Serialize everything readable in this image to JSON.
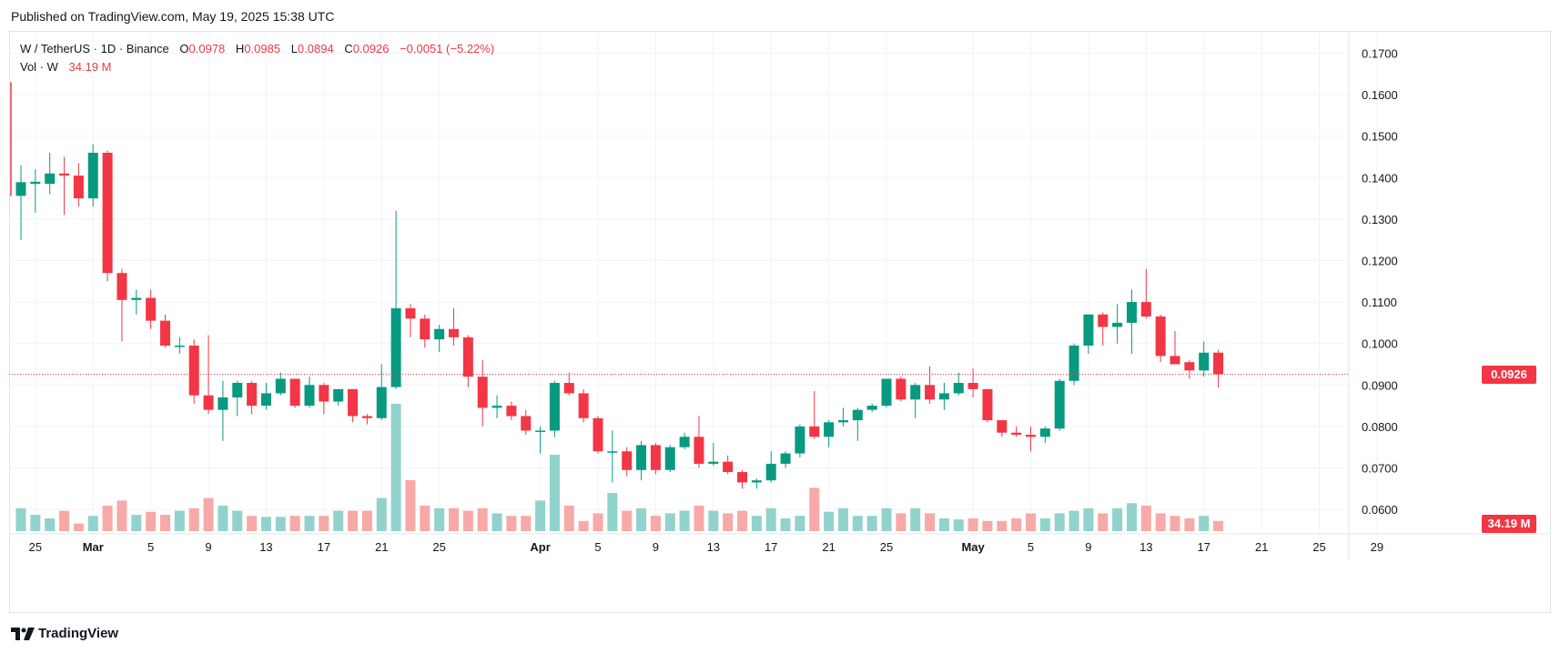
{
  "header": {
    "published": "Published on TradingView.com, May 19, 2025 15:38 UTC"
  },
  "legend": {
    "symbol": "W / TetherUS · 1D · Binance",
    "o_label": "O",
    "o_value": "0.0978",
    "h_label": "H",
    "h_value": "0.0985",
    "l_label": "L",
    "l_value": "0.0894",
    "c_label": "C",
    "c_value": "0.0926",
    "change": "−0.0051 (−5.22%)",
    "vol_label": "Vol · W",
    "vol_value": "34.19 M"
  },
  "price_axis": {
    "last_price_badge": "0.0926",
    "last_volume_badge": "34.19 M"
  },
  "footer": {
    "brand": "TradingView"
  },
  "colors": {
    "up": "#089981",
    "down": "#f23645",
    "up_volume": "#92d2cc",
    "down_volume": "#f7a9a7",
    "grid": "#f0f3fa"
  },
  "chart_data": {
    "type": "candlestick",
    "symbol": "W / TetherUS",
    "interval": "1D",
    "exchange": "Binance",
    "ylim": [
      0.058,
      0.176
    ],
    "y_ticks": [
      "0.1700",
      "0.1600",
      "0.1500",
      "0.1400",
      "0.1300",
      "0.1200",
      "0.1100",
      "0.1000",
      "0.0900",
      "0.0800",
      "0.0700",
      "0.0600"
    ],
    "x_ticks": [
      "25",
      "Mar",
      "5",
      "9",
      "13",
      "17",
      "21",
      "25",
      "Apr",
      "5",
      "9",
      "13",
      "17",
      "21",
      "25",
      "May",
      "5",
      "9",
      "13",
      "17",
      "21",
      "25",
      "29"
    ],
    "x_range": [
      "2025-02-24",
      "2025-05-29"
    ],
    "last_price": 0.0926,
    "last_volume": "34.19 M",
    "candles": [
      {
        "d": "2025-02-24",
        "o": 0.1356,
        "h": 0.143,
        "l": 0.125,
        "c": 0.1389,
        "v": 4.5
      },
      {
        "d": "2025-02-25",
        "o": 0.1385,
        "h": 0.142,
        "l": 0.1315,
        "c": 0.139,
        "v": 3.2
      },
      {
        "d": "2025-02-26",
        "o": 0.1385,
        "h": 0.146,
        "l": 0.136,
        "c": 0.141,
        "v": 2.5
      },
      {
        "d": "2025-02-27",
        "o": 0.141,
        "h": 0.145,
        "l": 0.131,
        "c": 0.1405,
        "v": 4.0
      },
      {
        "d": "2025-02-28",
        "o": 0.1405,
        "h": 0.1435,
        "l": 0.133,
        "c": 0.135,
        "v": 1.5
      },
      {
        "d": "2025-03-01",
        "o": 0.135,
        "h": 0.148,
        "l": 0.133,
        "c": 0.146,
        "v": 3.0
      },
      {
        "d": "2025-03-02",
        "o": 0.146,
        "h": 0.1465,
        "l": 0.115,
        "c": 0.117,
        "v": 5.0
      },
      {
        "d": "2025-03-03",
        "o": 0.117,
        "h": 0.118,
        "l": 0.1005,
        "c": 0.1105,
        "v": 6.0
      },
      {
        "d": "2025-03-04",
        "o": 0.1105,
        "h": 0.113,
        "l": 0.107,
        "c": 0.111,
        "v": 3.2
      },
      {
        "d": "2025-03-05",
        "o": 0.111,
        "h": 0.113,
        "l": 0.1035,
        "c": 0.1055,
        "v": 3.8
      },
      {
        "d": "2025-03-06",
        "o": 0.1055,
        "h": 0.107,
        "l": 0.099,
        "c": 0.0995,
        "v": 3.2
      },
      {
        "d": "2025-03-07",
        "o": 0.0995,
        "h": 0.1015,
        "l": 0.0975,
        "c": 0.0995,
        "v": 4.0
      },
      {
        "d": "2025-03-08",
        "o": 0.0995,
        "h": 0.101,
        "l": 0.0855,
        "c": 0.0875,
        "v": 4.5
      },
      {
        "d": "2025-03-09",
        "o": 0.0875,
        "h": 0.102,
        "l": 0.083,
        "c": 0.084,
        "v": 6.5
      },
      {
        "d": "2025-03-10",
        "o": 0.084,
        "h": 0.091,
        "l": 0.0765,
        "c": 0.087,
        "v": 5.0
      },
      {
        "d": "2025-03-11",
        "o": 0.087,
        "h": 0.091,
        "l": 0.0825,
        "c": 0.0905,
        "v": 4.0
      },
      {
        "d": "2025-03-12",
        "o": 0.0905,
        "h": 0.091,
        "l": 0.083,
        "c": 0.085,
        "v": 3.0
      },
      {
        "d": "2025-03-13",
        "o": 0.085,
        "h": 0.0905,
        "l": 0.084,
        "c": 0.088,
        "v": 2.8
      },
      {
        "d": "2025-03-14",
        "o": 0.088,
        "h": 0.093,
        "l": 0.0875,
        "c": 0.0915,
        "v": 2.8
      },
      {
        "d": "2025-03-15",
        "o": 0.0915,
        "h": 0.0915,
        "l": 0.0845,
        "c": 0.085,
        "v": 3.0
      },
      {
        "d": "2025-03-16",
        "o": 0.085,
        "h": 0.092,
        "l": 0.0845,
        "c": 0.09,
        "v": 3.0
      },
      {
        "d": "2025-03-17",
        "o": 0.09,
        "h": 0.0905,
        "l": 0.083,
        "c": 0.086,
        "v": 3.0
      },
      {
        "d": "2025-03-18",
        "o": 0.086,
        "h": 0.089,
        "l": 0.085,
        "c": 0.089,
        "v": 4.0
      },
      {
        "d": "2025-03-19",
        "o": 0.089,
        "h": 0.089,
        "l": 0.081,
        "c": 0.0825,
        "v": 4.0
      },
      {
        "d": "2025-03-20",
        "o": 0.0825,
        "h": 0.083,
        "l": 0.0805,
        "c": 0.082,
        "v": 4.0
      },
      {
        "d": "2025-03-21",
        "o": 0.082,
        "h": 0.095,
        "l": 0.0815,
        "c": 0.0895,
        "v": 6.5
      },
      {
        "d": "2025-03-22",
        "o": 0.0895,
        "h": 0.132,
        "l": 0.089,
        "c": 0.1085,
        "v": 25.0
      },
      {
        "d": "2025-03-23",
        "o": 0.1085,
        "h": 0.1095,
        "l": 0.1015,
        "c": 0.106,
        "v": 10.0
      },
      {
        "d": "2025-03-24",
        "o": 0.106,
        "h": 0.107,
        "l": 0.099,
        "c": 0.101,
        "v": 5.0
      },
      {
        "d": "2025-03-25",
        "o": 0.101,
        "h": 0.1045,
        "l": 0.098,
        "c": 0.1035,
        "v": 4.5
      },
      {
        "d": "2025-03-26",
        "o": 0.1035,
        "h": 0.1085,
        "l": 0.0995,
        "c": 0.1015,
        "v": 4.5
      },
      {
        "d": "2025-03-27",
        "o": 0.1015,
        "h": 0.102,
        "l": 0.0895,
        "c": 0.092,
        "v": 4.0
      },
      {
        "d": "2025-03-28",
        "o": 0.092,
        "h": 0.096,
        "l": 0.08,
        "c": 0.0845,
        "v": 4.5
      },
      {
        "d": "2025-03-29",
        "o": 0.0845,
        "h": 0.0875,
        "l": 0.082,
        "c": 0.085,
        "v": 3.5
      },
      {
        "d": "2025-03-30",
        "o": 0.085,
        "h": 0.086,
        "l": 0.0815,
        "c": 0.0825,
        "v": 3.0
      },
      {
        "d": "2025-03-31",
        "o": 0.0825,
        "h": 0.084,
        "l": 0.078,
        "c": 0.079,
        "v": 3.0
      },
      {
        "d": "2025-04-01",
        "o": 0.079,
        "h": 0.08,
        "l": 0.0735,
        "c": 0.079,
        "v": 6.0
      },
      {
        "d": "2025-04-02",
        "o": 0.079,
        "h": 0.091,
        "l": 0.0775,
        "c": 0.0905,
        "v": 15.0
      },
      {
        "d": "2025-04-03",
        "o": 0.0905,
        "h": 0.093,
        "l": 0.0875,
        "c": 0.088,
        "v": 5.0
      },
      {
        "d": "2025-04-04",
        "o": 0.088,
        "h": 0.089,
        "l": 0.081,
        "c": 0.082,
        "v": 2.0
      },
      {
        "d": "2025-04-05",
        "o": 0.082,
        "h": 0.0825,
        "l": 0.0735,
        "c": 0.074,
        "v": 3.5
      },
      {
        "d": "2025-04-06",
        "o": 0.074,
        "h": 0.079,
        "l": 0.0665,
        "c": 0.074,
        "v": 7.5
      },
      {
        "d": "2025-04-07",
        "o": 0.074,
        "h": 0.075,
        "l": 0.068,
        "c": 0.0695,
        "v": 4.0
      },
      {
        "d": "2025-04-08",
        "o": 0.0695,
        "h": 0.0765,
        "l": 0.067,
        "c": 0.0755,
        "v": 4.5
      },
      {
        "d": "2025-04-09",
        "o": 0.0755,
        "h": 0.076,
        "l": 0.0685,
        "c": 0.0695,
        "v": 3.0
      },
      {
        "d": "2025-04-10",
        "o": 0.0695,
        "h": 0.0755,
        "l": 0.069,
        "c": 0.075,
        "v": 3.5
      },
      {
        "d": "2025-04-11",
        "o": 0.075,
        "h": 0.0785,
        "l": 0.0745,
        "c": 0.0775,
        "v": 4.0
      },
      {
        "d": "2025-04-12",
        "o": 0.0775,
        "h": 0.0825,
        "l": 0.07,
        "c": 0.071,
        "v": 5.0
      },
      {
        "d": "2025-04-13",
        "o": 0.071,
        "h": 0.076,
        "l": 0.0705,
        "c": 0.0715,
        "v": 4.0
      },
      {
        "d": "2025-04-14",
        "o": 0.0715,
        "h": 0.073,
        "l": 0.0685,
        "c": 0.069,
        "v": 3.5
      },
      {
        "d": "2025-04-15",
        "o": 0.069,
        "h": 0.0695,
        "l": 0.065,
        "c": 0.0665,
        "v": 4.0
      },
      {
        "d": "2025-04-16",
        "o": 0.0665,
        "h": 0.0675,
        "l": 0.065,
        "c": 0.067,
        "v": 3.0
      },
      {
        "d": "2025-04-17",
        "o": 0.067,
        "h": 0.074,
        "l": 0.0665,
        "c": 0.071,
        "v": 4.5
      },
      {
        "d": "2025-04-18",
        "o": 0.071,
        "h": 0.074,
        "l": 0.07,
        "c": 0.0735,
        "v": 2.5
      },
      {
        "d": "2025-04-19",
        "o": 0.0735,
        "h": 0.0805,
        "l": 0.0725,
        "c": 0.08,
        "v": 3.0
      },
      {
        "d": "2025-04-20",
        "o": 0.08,
        "h": 0.0885,
        "l": 0.077,
        "c": 0.0775,
        "v": 8.5
      },
      {
        "d": "2025-04-21",
        "o": 0.0775,
        "h": 0.0815,
        "l": 0.075,
        "c": 0.081,
        "v": 3.8
      },
      {
        "d": "2025-04-22",
        "o": 0.081,
        "h": 0.0845,
        "l": 0.08,
        "c": 0.0815,
        "v": 4.5
      },
      {
        "d": "2025-04-23",
        "o": 0.0815,
        "h": 0.0845,
        "l": 0.0765,
        "c": 0.084,
        "v": 3.0
      },
      {
        "d": "2025-04-24",
        "o": 0.084,
        "h": 0.0855,
        "l": 0.0835,
        "c": 0.085,
        "v": 3.0
      },
      {
        "d": "2025-04-25",
        "o": 0.085,
        "h": 0.0915,
        "l": 0.0845,
        "c": 0.0915,
        "v": 4.5
      },
      {
        "d": "2025-04-26",
        "o": 0.0915,
        "h": 0.092,
        "l": 0.086,
        "c": 0.0865,
        "v": 3.5
      },
      {
        "d": "2025-04-27",
        "o": 0.0865,
        "h": 0.0905,
        "l": 0.082,
        "c": 0.09,
        "v": 4.5
      },
      {
        "d": "2025-04-28",
        "o": 0.09,
        "h": 0.0945,
        "l": 0.0855,
        "c": 0.0865,
        "v": 3.5
      },
      {
        "d": "2025-04-29",
        "o": 0.0865,
        "h": 0.0905,
        "l": 0.084,
        "c": 0.088,
        "v": 2.5
      },
      {
        "d": "2025-04-30",
        "o": 0.088,
        "h": 0.093,
        "l": 0.0875,
        "c": 0.0905,
        "v": 2.3
      },
      {
        "d": "2025-05-01",
        "o": 0.0905,
        "h": 0.094,
        "l": 0.087,
        "c": 0.089,
        "v": 2.5
      },
      {
        "d": "2025-05-02",
        "o": 0.089,
        "h": 0.089,
        "l": 0.081,
        "c": 0.0815,
        "v": 2.0
      },
      {
        "d": "2025-05-03",
        "o": 0.0815,
        "h": 0.0815,
        "l": 0.0775,
        "c": 0.0785,
        "v": 2.0
      },
      {
        "d": "2025-05-04",
        "o": 0.0785,
        "h": 0.08,
        "l": 0.0775,
        "c": 0.078,
        "v": 2.5
      },
      {
        "d": "2025-05-05",
        "o": 0.078,
        "h": 0.08,
        "l": 0.074,
        "c": 0.0775,
        "v": 3.5
      },
      {
        "d": "2025-05-06",
        "o": 0.0775,
        "h": 0.08,
        "l": 0.076,
        "c": 0.0795,
        "v": 2.5
      },
      {
        "d": "2025-05-07",
        "o": 0.0795,
        "h": 0.0915,
        "l": 0.079,
        "c": 0.091,
        "v": 3.5
      },
      {
        "d": "2025-05-08",
        "o": 0.091,
        "h": 0.1,
        "l": 0.09,
        "c": 0.0995,
        "v": 4.0
      },
      {
        "d": "2025-05-09",
        "o": 0.0995,
        "h": 0.107,
        "l": 0.0975,
        "c": 0.107,
        "v": 4.5
      },
      {
        "d": "2025-05-10",
        "o": 0.107,
        "h": 0.1075,
        "l": 0.0995,
        "c": 0.104,
        "v": 3.5
      },
      {
        "d": "2025-05-11",
        "o": 0.104,
        "h": 0.1095,
        "l": 0.1,
        "c": 0.105,
        "v": 4.5
      },
      {
        "d": "2025-05-12",
        "o": 0.105,
        "h": 0.113,
        "l": 0.0975,
        "c": 0.11,
        "v": 5.5
      },
      {
        "d": "2025-05-13",
        "o": 0.11,
        "h": 0.118,
        "l": 0.106,
        "c": 0.1065,
        "v": 5.0
      },
      {
        "d": "2025-05-14",
        "o": 0.1065,
        "h": 0.107,
        "l": 0.0955,
        "c": 0.097,
        "v": 3.5
      },
      {
        "d": "2025-05-15",
        "o": 0.097,
        "h": 0.103,
        "l": 0.095,
        "c": 0.095,
        "v": 3.0
      },
      {
        "d": "2025-05-16",
        "o": 0.0955,
        "h": 0.096,
        "l": 0.0915,
        "c": 0.0935,
        "v": 2.5
      },
      {
        "d": "2025-05-17",
        "o": 0.0935,
        "h": 0.1005,
        "l": 0.092,
        "c": 0.0978,
        "v": 3.0
      },
      {
        "d": "2025-05-18",
        "o": 0.0978,
        "h": 0.0985,
        "l": 0.0894,
        "c": 0.0926,
        "v": 2.0
      }
    ]
  }
}
